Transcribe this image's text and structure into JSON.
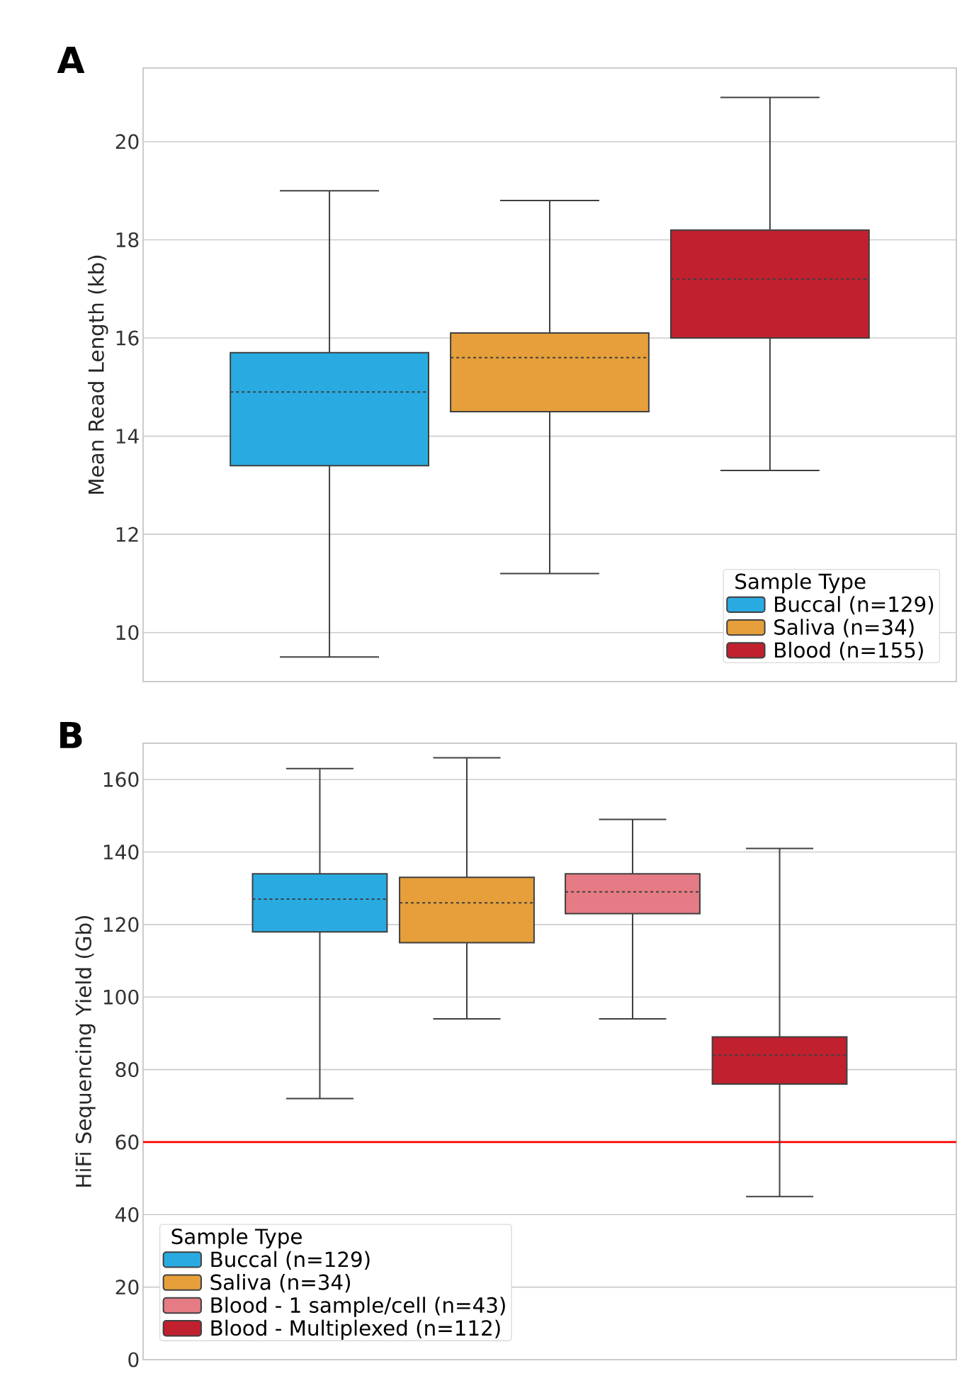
{
  "chart_data": [
    {
      "type": "box",
      "ylabel": "Mean Read Length (kb)",
      "legend_title": "Sample Type",
      "annotations": [
        "A"
      ],
      "categories": [
        null
      ],
      "series": [
        {
          "name": "Buccal (n=129)",
          "color": "#29abe2",
          "boxes": [
            {
              "low": 9.5,
              "q1": 13.4,
              "median": 14.9,
              "q3": 15.7,
              "high": 19.0
            }
          ]
        },
        {
          "name": "Saliva (n=34)",
          "color": "#e69f3a",
          "boxes": [
            {
              "low": 11.2,
              "q1": 14.5,
              "median": 15.6,
              "q3": 16.1,
              "high": 18.8
            }
          ]
        },
        {
          "name": "Blood (n=155)",
          "color": "#c1202f",
          "boxes": [
            {
              "low": 13.3,
              "q1": 16.0,
              "median": 17.2,
              "q3": 18.2,
              "high": 20.9
            }
          ]
        }
      ],
      "ylim": [
        9,
        21.5
      ],
      "yticks": [
        10,
        12,
        14,
        16,
        18,
        20
      ],
      "grid": "y",
      "legend": "bottom right",
      "tick_labels": "y"
    },
    {
      "type": "box",
      "ylabel": "HiFi Sequencing Yield (Gb)",
      "legend_title": "Sample Type",
      "annotations": [
        "B"
      ],
      "categories": [
        null,
        null
      ],
      "series": [
        {
          "name": "Buccal (n=129)",
          "color": "#29abe2",
          "boxes": [
            {
              "low": 72,
              "q1": 118,
              "median": 127,
              "q3": 134,
              "high": 163
            },
            null
          ]
        },
        {
          "name": "Saliva (n=34)",
          "color": "#e69f3a",
          "boxes": [
            {
              "low": 94,
              "q1": 115,
              "median": 126,
              "q3": 133,
              "high": 166
            },
            null
          ]
        },
        {
          "name": "Blood - 1 sample/cell (n=43)",
          "color": "#e57b84",
          "boxes": [
            null,
            {
              "low": 94,
              "q1": 123,
              "median": 129,
              "q3": 134,
              "high": 149
            }
          ]
        },
        {
          "name": "Blood - Multiplexed (n=112)",
          "color": "#c1202f",
          "boxes": [
            null,
            {
              "low": 45,
              "q1": 76,
              "median": 84,
              "q3": 89,
              "high": 141
            }
          ]
        }
      ],
      "ref_lines": [
        {
          "axis": "y",
          "value": 60,
          "color": "#ff0000"
        }
      ],
      "ylim": [
        0,
        170
      ],
      "yticks": [
        0,
        20,
        40,
        60,
        80,
        100,
        120,
        140,
        160
      ],
      "grid": "y",
      "legend": "bottom left",
      "tick_labels": "y"
    }
  ]
}
